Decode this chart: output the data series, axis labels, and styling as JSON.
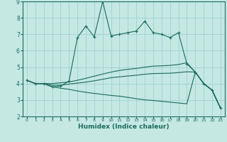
{
  "xlabel": "Humidex (Indice chaleur)",
  "background_color": "#c5e8e3",
  "grid_color": "#99cccc",
  "line_color": "#1a6b5a",
  "xlim_min": -0.5,
  "xlim_max": 23.5,
  "ylim_min": 2,
  "ylim_max": 9,
  "xticks": [
    0,
    1,
    2,
    3,
    4,
    5,
    6,
    7,
    8,
    9,
    10,
    11,
    12,
    13,
    14,
    15,
    16,
    17,
    18,
    19,
    20,
    21,
    22,
    23
  ],
  "yticks": [
    2,
    3,
    4,
    5,
    6,
    7,
    8,
    9
  ],
  "s1_x": [
    0,
    1,
    2,
    3,
    4,
    5,
    6,
    7,
    8,
    9,
    10,
    11,
    12,
    13,
    14,
    15,
    16,
    17,
    18,
    19,
    20,
    21,
    22,
    23
  ],
  "s1_y": [
    4.2,
    4.0,
    4.0,
    3.8,
    3.85,
    4.15,
    6.8,
    7.5,
    6.85,
    9.0,
    6.9,
    7.0,
    7.1,
    7.2,
    7.8,
    7.1,
    7.0,
    6.8,
    7.1,
    5.2,
    4.7,
    4.0,
    3.6,
    2.5
  ],
  "s2_x": [
    0,
    1,
    2,
    3,
    4,
    5,
    6,
    7,
    8,
    9,
    10,
    11,
    12,
    13,
    14,
    15,
    16,
    17,
    18,
    19,
    20,
    21,
    22,
    23
  ],
  "s2_y": [
    4.2,
    4.0,
    4.0,
    4.0,
    4.05,
    4.1,
    4.2,
    4.32,
    4.45,
    4.58,
    4.7,
    4.8,
    4.87,
    4.92,
    5.0,
    5.06,
    5.08,
    5.11,
    5.16,
    5.27,
    4.7,
    4.0,
    3.6,
    2.5
  ],
  "s3_x": [
    0,
    1,
    2,
    3,
    4,
    5,
    6,
    7,
    8,
    9,
    10,
    11,
    12,
    13,
    14,
    15,
    16,
    17,
    18,
    19,
    20,
    21,
    22,
    23
  ],
  "s3_y": [
    4.2,
    4.0,
    4.0,
    3.9,
    3.9,
    3.97,
    4.03,
    4.09,
    4.17,
    4.26,
    4.36,
    4.41,
    4.46,
    4.51,
    4.57,
    4.61,
    4.62,
    4.63,
    4.67,
    4.72,
    4.7,
    4.0,
    3.6,
    2.5
  ],
  "s4_x": [
    0,
    1,
    2,
    3,
    4,
    5,
    6,
    7,
    8,
    9,
    10,
    11,
    12,
    13,
    14,
    15,
    16,
    17,
    18,
    19,
    20,
    21,
    22,
    23
  ],
  "s4_y": [
    4.2,
    4.0,
    4.0,
    3.8,
    3.72,
    3.65,
    3.55,
    3.47,
    3.4,
    3.34,
    3.28,
    3.23,
    3.16,
    3.08,
    3.01,
    2.97,
    2.92,
    2.87,
    2.82,
    2.77,
    4.7,
    4.0,
    3.6,
    2.5
  ]
}
